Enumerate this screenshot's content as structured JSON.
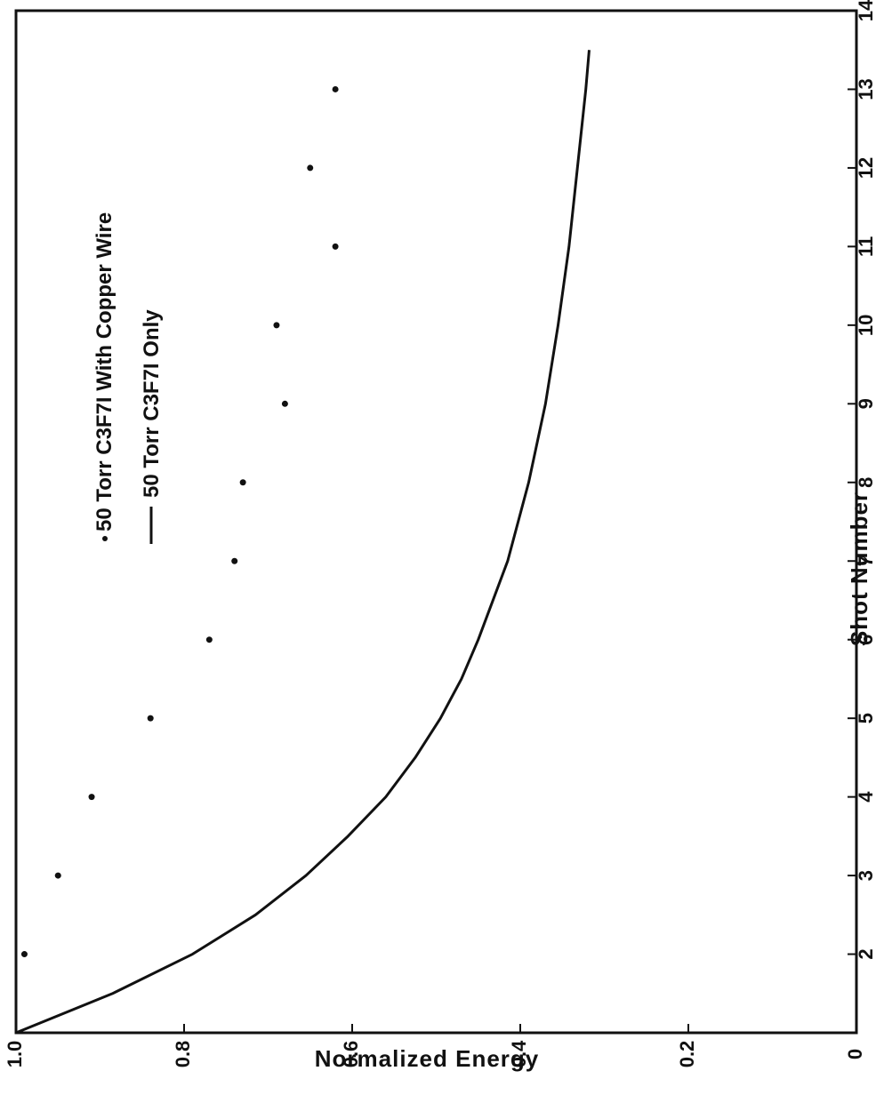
{
  "chart_data": {
    "type": "scatter",
    "title": "",
    "xlabel": "Shot Number",
    "ylabel": "Normalized Energy",
    "xlim": [
      1,
      14
    ],
    "ylim": [
      0,
      1.0
    ],
    "x_ticks": [
      "2",
      "3",
      "4",
      "5",
      "6",
      "7",
      "8",
      "9",
      "10",
      "11",
      "12",
      "13",
      "14"
    ],
    "y_ticks": [
      "0",
      "0.2",
      "0.4",
      "0.6",
      "0.8",
      "1.0"
    ],
    "grid": false,
    "legend_position": "top-left",
    "orientation": "rotated 90 degrees counter-clockwise",
    "series": [
      {
        "name": "50 Torr C3F7I With Copper Wire",
        "style": "points",
        "x": [
          2,
          3,
          4,
          5,
          6,
          7,
          8,
          9,
          10,
          11,
          12,
          13
        ],
        "y": [
          0.99,
          0.95,
          0.91,
          0.84,
          0.77,
          0.74,
          0.73,
          0.68,
          0.69,
          0.62,
          0.65,
          0.62
        ]
      },
      {
        "name": "50 Torr C3F7I Only",
        "style": "line",
        "x": [
          1,
          1.5,
          2,
          2.5,
          3,
          3.5,
          4,
          4.5,
          5,
          5.5,
          6,
          7,
          8,
          9,
          10,
          11,
          12,
          13,
          13.5
        ],
        "y": [
          1.0,
          0.885,
          0.79,
          0.715,
          0.655,
          0.605,
          0.56,
          0.525,
          0.495,
          0.47,
          0.45,
          0.415,
          0.39,
          0.37,
          0.355,
          0.342,
          0.332,
          0.322,
          0.318
        ]
      }
    ]
  }
}
